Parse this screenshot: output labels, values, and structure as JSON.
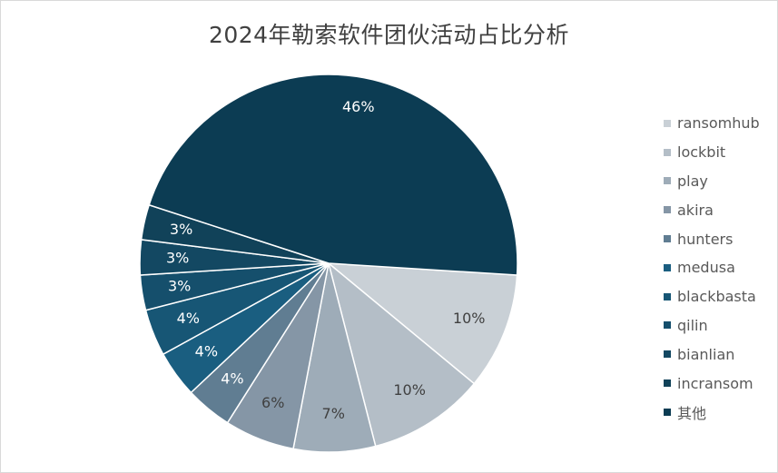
{
  "chart_data": {
    "type": "pie",
    "title": "2024年勒索软件团伙活动占比分析",
    "legend_position": "right",
    "slices": [
      {
        "name": "ransomhub",
        "value": 10,
        "label": "10%",
        "color": "#c9d0d6"
      },
      {
        "name": "lockbit",
        "value": 10,
        "label": "10%",
        "color": "#b4bec7"
      },
      {
        "name": "play",
        "value": 7,
        "label": "7%",
        "color": "#9eacb8"
      },
      {
        "name": "akira",
        "value": 6,
        "label": "6%",
        "color": "#8596a6"
      },
      {
        "name": "hunters",
        "value": 4,
        "label": "4%",
        "color": "#607d92"
      },
      {
        "name": "medusa",
        "value": 4,
        "label": "4%",
        "color": "#1a5e80"
      },
      {
        "name": "blackbasta",
        "value": 4,
        "label": "4%",
        "color": "#175675"
      },
      {
        "name": "qilin",
        "value": 3,
        "label": "3%",
        "color": "#154f6c"
      },
      {
        "name": "bianlian",
        "value": 3,
        "label": "3%",
        "color": "#134862"
      },
      {
        "name": "incransom",
        "value": 3,
        "label": "3%",
        "color": "#114259"
      },
      {
        "name": "其他",
        "value": 46,
        "label": "46%",
        "color": "#0c3c53"
      }
    ]
  }
}
